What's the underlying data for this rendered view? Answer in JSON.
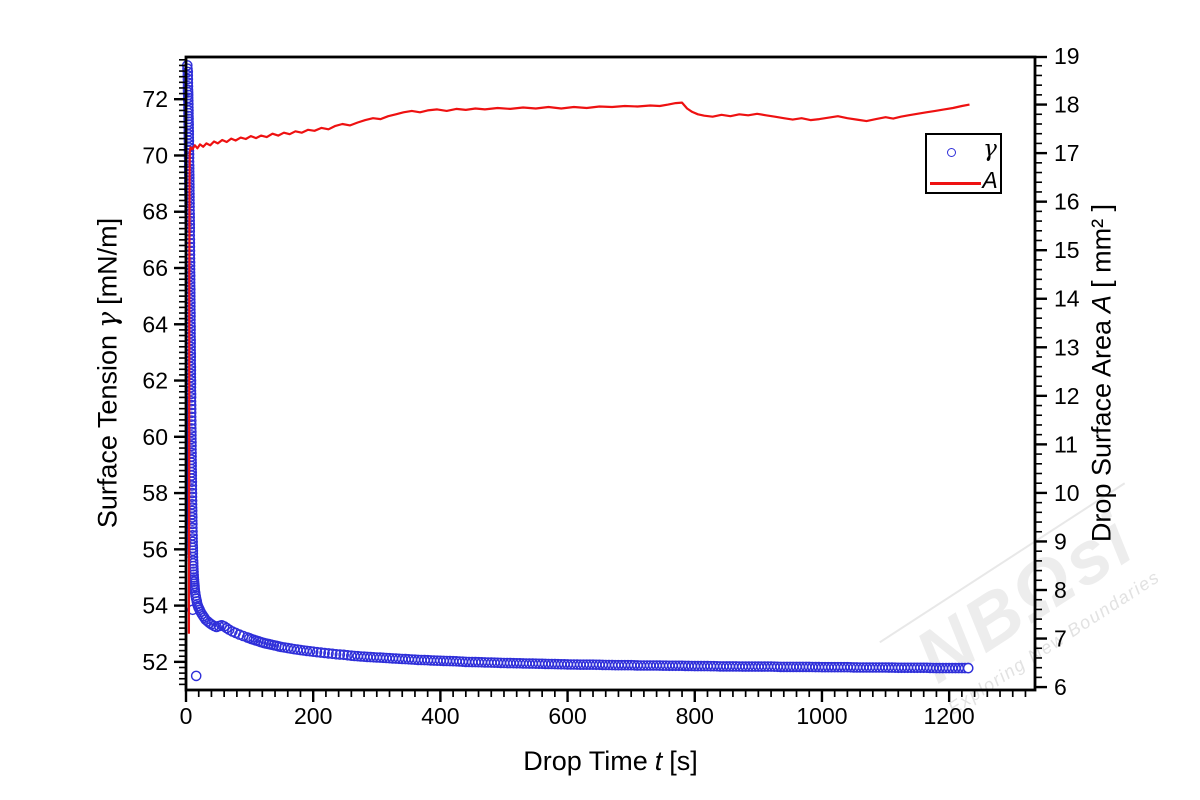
{
  "chart_data": {
    "type": "scatter+line",
    "title": "",
    "x": {
      "label_parts": [
        "Drop Time",
        "t",
        "[s]"
      ],
      "range": [
        0,
        1335
      ],
      "major_ticks": [
        0,
        200,
        400,
        600,
        800,
        1000,
        1200
      ],
      "minor_step": 20
    },
    "left_axis": {
      "label_parts": [
        "Surface Tension",
        "γ",
        "[mN/m]"
      ],
      "range": [
        51.0,
        73.5
      ],
      "major_ticks": [
        52,
        54,
        56,
        58,
        60,
        62,
        64,
        66,
        68,
        70,
        72
      ],
      "minor_step": 0.2
    },
    "right_axis": {
      "label_parts": [
        "Drop Surface Area",
        "A",
        "[ mm² ]"
      ],
      "range": [
        5.94,
        18.98
      ],
      "major_ticks": [
        6,
        7,
        8,
        9,
        10,
        11,
        12,
        13,
        14,
        15,
        16,
        17,
        18,
        19
      ],
      "minor_step": 0.2
    },
    "legend": {
      "position": "top-right",
      "items": [
        {
          "label": "γ",
          "marker": "open-circle",
          "color": "#2f2fd9"
        },
        {
          "label": "A",
          "marker": "line",
          "color": "#ee1111"
        }
      ]
    },
    "series": [
      {
        "name": "γ",
        "axis": "left",
        "type": "scatter",
        "marker": "open-circle",
        "color": "#2f2fd9",
        "points": [
          [
            2,
            73.2
          ],
          [
            2.8,
            72.97
          ],
          [
            3.2,
            72.33
          ],
          [
            3.4,
            72.15
          ],
          [
            3.6,
            71.95
          ],
          [
            3.8,
            71.7
          ],
          [
            4.0,
            71.4
          ],
          [
            4.2,
            71.1
          ],
          [
            4.4,
            70.75
          ],
          [
            4.6,
            70.4
          ],
          [
            4.8,
            70.05
          ],
          [
            5.0,
            69.65
          ],
          [
            5.2,
            69.2
          ],
          [
            5.4,
            68.75
          ],
          [
            5.6,
            68.3
          ],
          [
            5.8,
            67.8
          ],
          [
            6.0,
            67.3
          ],
          [
            6.2,
            66.75
          ],
          [
            6.4,
            66.2
          ],
          [
            6.6,
            65.6
          ],
          [
            6.8,
            65.0
          ],
          [
            7.0,
            64.4
          ],
          [
            7.2,
            63.8
          ],
          [
            7.4,
            63.2
          ],
          [
            7.6,
            62.6
          ],
          [
            7.8,
            62.0
          ],
          [
            8.0,
            61.4
          ],
          [
            8.2,
            60.85
          ],
          [
            8.4,
            60.3
          ],
          [
            8.6,
            59.8
          ],
          [
            8.8,
            59.3
          ],
          [
            9.0,
            58.85
          ],
          [
            9.2,
            58.4
          ],
          [
            9.4,
            58.0
          ],
          [
            9.6,
            57.6
          ],
          [
            9.8,
            57.25
          ],
          [
            10.0,
            56.9
          ],
          [
            10.3,
            56.5
          ],
          [
            10.6,
            56.15
          ],
          [
            10.9,
            55.85
          ],
          [
            11.2,
            55.6
          ],
          [
            11.5,
            55.4
          ],
          [
            11.9,
            55.2
          ],
          [
            12.3,
            55.0
          ],
          [
            12.8,
            54.85
          ],
          [
            13.3,
            54.7
          ],
          [
            13.9,
            54.55
          ],
          [
            14.5,
            54.45
          ],
          [
            15.2,
            54.35
          ],
          [
            16,
            54.25
          ],
          [
            17,
            54.15
          ],
          [
            18,
            54.05
          ],
          [
            19,
            53.98
          ],
          [
            20,
            53.92
          ],
          [
            21.5,
            53.85
          ],
          [
            23,
            53.78
          ],
          [
            25,
            53.7
          ],
          [
            27,
            53.63
          ],
          [
            29,
            53.57
          ],
          [
            31,
            53.5
          ],
          [
            34,
            53.44
          ],
          [
            37,
            53.38
          ],
          [
            40,
            53.33
          ],
          [
            44,
            53.28
          ],
          [
            48,
            53.24
          ],
          [
            52,
            53.27
          ],
          [
            56,
            53.3
          ],
          [
            60,
            53.26
          ],
          [
            64,
            53.2
          ],
          [
            68,
            53.14
          ],
          [
            73,
            53.08
          ],
          [
            78,
            53.03
          ],
          [
            84,
            52.97
          ],
          [
            90,
            52.92
          ],
          [
            96,
            52.87
          ],
          [
            103,
            52.81
          ],
          [
            110,
            52.76
          ],
          [
            118,
            52.7
          ],
          [
            126,
            52.65
          ],
          [
            134,
            52.61
          ],
          [
            142,
            52.57
          ],
          [
            150,
            52.53
          ],
          [
            160,
            52.49
          ],
          [
            170,
            52.45
          ],
          [
            180,
            52.42
          ],
          [
            190,
            52.39
          ],
          [
            200,
            52.36
          ],
          [
            212,
            52.33
          ],
          [
            224,
            52.3
          ],
          [
            236,
            52.27
          ],
          [
            248,
            52.25
          ],
          [
            260,
            52.22
          ],
          [
            275,
            52.19
          ],
          [
            290,
            52.17
          ],
          [
            305,
            52.15
          ],
          [
            320,
            52.13
          ],
          [
            335,
            52.11
          ],
          [
            350,
            52.09
          ],
          [
            365,
            52.07
          ],
          [
            380,
            52.06
          ],
          [
            395,
            52.04
          ],
          [
            410,
            52.03
          ],
          [
            425,
            52.02
          ],
          [
            440,
            52.0
          ],
          [
            455,
            51.99
          ],
          [
            470,
            51.98
          ],
          [
            485,
            51.97
          ],
          [
            500,
            51.96
          ],
          [
            520,
            51.95
          ],
          [
            540,
            51.94
          ],
          [
            560,
            51.93
          ],
          [
            580,
            51.92
          ],
          [
            600,
            51.91
          ],
          [
            620,
            51.9
          ],
          [
            640,
            51.9
          ],
          [
            660,
            51.89
          ],
          [
            680,
            51.88
          ],
          [
            700,
            51.88
          ],
          [
            720,
            51.87
          ],
          [
            740,
            51.87
          ],
          [
            760,
            51.86
          ],
          [
            780,
            51.86
          ],
          [
            800,
            51.85
          ],
          [
            820,
            51.85
          ],
          [
            840,
            51.84
          ],
          [
            860,
            51.84
          ],
          [
            880,
            51.83
          ],
          [
            900,
            51.83
          ],
          [
            920,
            51.83
          ],
          [
            940,
            51.82
          ],
          [
            960,
            51.82
          ],
          [
            980,
            51.82
          ],
          [
            1000,
            51.81
          ],
          [
            1020,
            51.81
          ],
          [
            1040,
            51.81
          ],
          [
            1060,
            51.8
          ],
          [
            1080,
            51.8
          ],
          [
            1100,
            51.8
          ],
          [
            1120,
            51.79
          ],
          [
            1140,
            51.79
          ],
          [
            1160,
            51.79
          ],
          [
            1180,
            51.78
          ],
          [
            1200,
            51.78
          ],
          [
            1215,
            51.78
          ],
          [
            1230,
            51.78
          ]
        ],
        "outliers": [
          [
            10.5,
            53.85
          ],
          [
            16,
            51.5
          ]
        ]
      },
      {
        "name": "A",
        "axis": "right",
        "type": "line",
        "color": "#ee1111",
        "points": [
          [
            4.6,
            7.1
          ],
          [
            4.8,
            9.2
          ],
          [
            5.0,
            11.8
          ],
          [
            5.2,
            14.4
          ],
          [
            5.5,
            16.2
          ],
          [
            5.8,
            17.0
          ],
          [
            7,
            17.12
          ],
          [
            10,
            17.08
          ],
          [
            14,
            17.16
          ],
          [
            18,
            17.1
          ],
          [
            22,
            17.18
          ],
          [
            27,
            17.13
          ],
          [
            32,
            17.2
          ],
          [
            38,
            17.16
          ],
          [
            44,
            17.24
          ],
          [
            50,
            17.2
          ],
          [
            57,
            17.27
          ],
          [
            64,
            17.23
          ],
          [
            71,
            17.3
          ],
          [
            78,
            17.26
          ],
          [
            86,
            17.32
          ],
          [
            94,
            17.29
          ],
          [
            102,
            17.35
          ],
          [
            110,
            17.31
          ],
          [
            118,
            17.36
          ],
          [
            127,
            17.33
          ],
          [
            136,
            17.4
          ],
          [
            145,
            17.36
          ],
          [
            154,
            17.42
          ],
          [
            163,
            17.39
          ],
          [
            172,
            17.45
          ],
          [
            182,
            17.42
          ],
          [
            192,
            17.48
          ],
          [
            202,
            17.46
          ],
          [
            213,
            17.52
          ],
          [
            224,
            17.49
          ],
          [
            235,
            17.56
          ],
          [
            246,
            17.6
          ],
          [
            258,
            17.57
          ],
          [
            270,
            17.63
          ],
          [
            282,
            17.68
          ],
          [
            294,
            17.72
          ],
          [
            306,
            17.7
          ],
          [
            318,
            17.76
          ],
          [
            330,
            17.8
          ],
          [
            342,
            17.84
          ],
          [
            355,
            17.87
          ],
          [
            368,
            17.84
          ],
          [
            380,
            17.88
          ],
          [
            395,
            17.9
          ],
          [
            410,
            17.87
          ],
          [
            425,
            17.91
          ],
          [
            440,
            17.89
          ],
          [
            455,
            17.92
          ],
          [
            470,
            17.9
          ],
          [
            490,
            17.93
          ],
          [
            510,
            17.91
          ],
          [
            530,
            17.94
          ],
          [
            550,
            17.92
          ],
          [
            570,
            17.95
          ],
          [
            590,
            17.92
          ],
          [
            610,
            17.95
          ],
          [
            630,
            17.93
          ],
          [
            650,
            17.96
          ],
          [
            670,
            17.95
          ],
          [
            690,
            17.97
          ],
          [
            710,
            17.96
          ],
          [
            730,
            17.98
          ],
          [
            745,
            17.97
          ],
          [
            758,
            18.0
          ],
          [
            770,
            18.03
          ],
          [
            780,
            18.04
          ],
          [
            788,
            17.92
          ],
          [
            796,
            17.85
          ],
          [
            805,
            17.8
          ],
          [
            815,
            17.77
          ],
          [
            828,
            17.75
          ],
          [
            842,
            17.79
          ],
          [
            856,
            17.76
          ],
          [
            870,
            17.8
          ],
          [
            884,
            17.78
          ],
          [
            898,
            17.81
          ],
          [
            912,
            17.78
          ],
          [
            926,
            17.75
          ],
          [
            940,
            17.72
          ],
          [
            954,
            17.69
          ],
          [
            968,
            17.72
          ],
          [
            982,
            17.68
          ],
          [
            996,
            17.7
          ],
          [
            1010,
            17.73
          ],
          [
            1025,
            17.76
          ],
          [
            1040,
            17.72
          ],
          [
            1055,
            17.69
          ],
          [
            1070,
            17.66
          ],
          [
            1085,
            17.7
          ],
          [
            1100,
            17.74
          ],
          [
            1112,
            17.71
          ],
          [
            1124,
            17.75
          ],
          [
            1136,
            17.78
          ],
          [
            1150,
            17.81
          ],
          [
            1164,
            17.84
          ],
          [
            1178,
            17.87
          ],
          [
            1192,
            17.9
          ],
          [
            1206,
            17.93
          ],
          [
            1220,
            17.97
          ],
          [
            1232,
            18.0
          ]
        ]
      }
    ]
  },
  "watermark": {
    "logo": "NBΩsi",
    "tagline": "Exploring New Boundaries"
  }
}
